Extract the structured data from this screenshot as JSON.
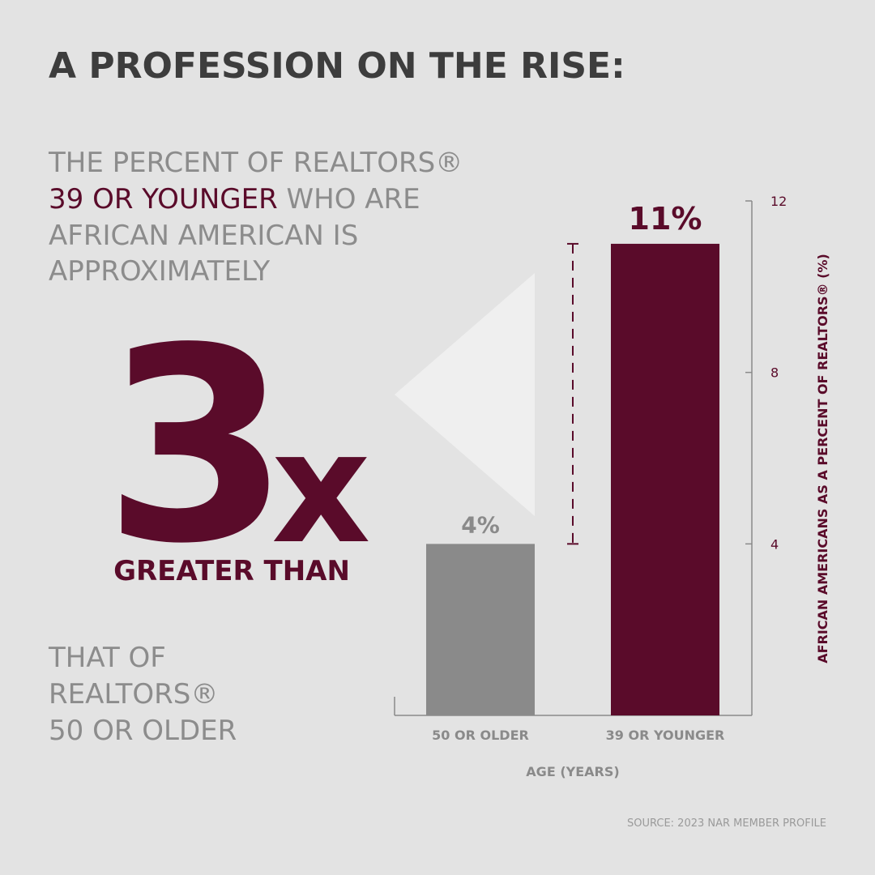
{
  "title": "A PROFESSION ON THE RISE:",
  "intro": {
    "line1": "THE PERCENT OF REALTORS®",
    "highlight": "39 OR YOUNGER",
    "line2_rest": "WHO ARE",
    "line3": "AFRICAN AMERICAN IS",
    "line4": "APPROXIMATELY"
  },
  "multiplier": {
    "number": "3",
    "suffix": "x",
    "caption": "GREATER THAN"
  },
  "comparison": {
    "line1": "THAT OF",
    "line2": "REALTORS®",
    "line3": "50 OR OLDER"
  },
  "source": "SOURCE: 2023 NAR MEMBER PROFILE",
  "chart_data": {
    "type": "bar",
    "categories": [
      "50 OR OLDER",
      "39 OR YOUNGER"
    ],
    "values": [
      4,
      11
    ],
    "value_labels": [
      "4%",
      "11%"
    ],
    "colors": [
      "#8a8a8a",
      "#5a0b2a"
    ],
    "ylim": [
      0,
      12
    ],
    "yticks": [
      4,
      8,
      12
    ],
    "y_label": "AFRICAN AMERICANS AS A PERCENT OF REALTORS® (%)",
    "x_label": "AGE (YEARS)"
  }
}
